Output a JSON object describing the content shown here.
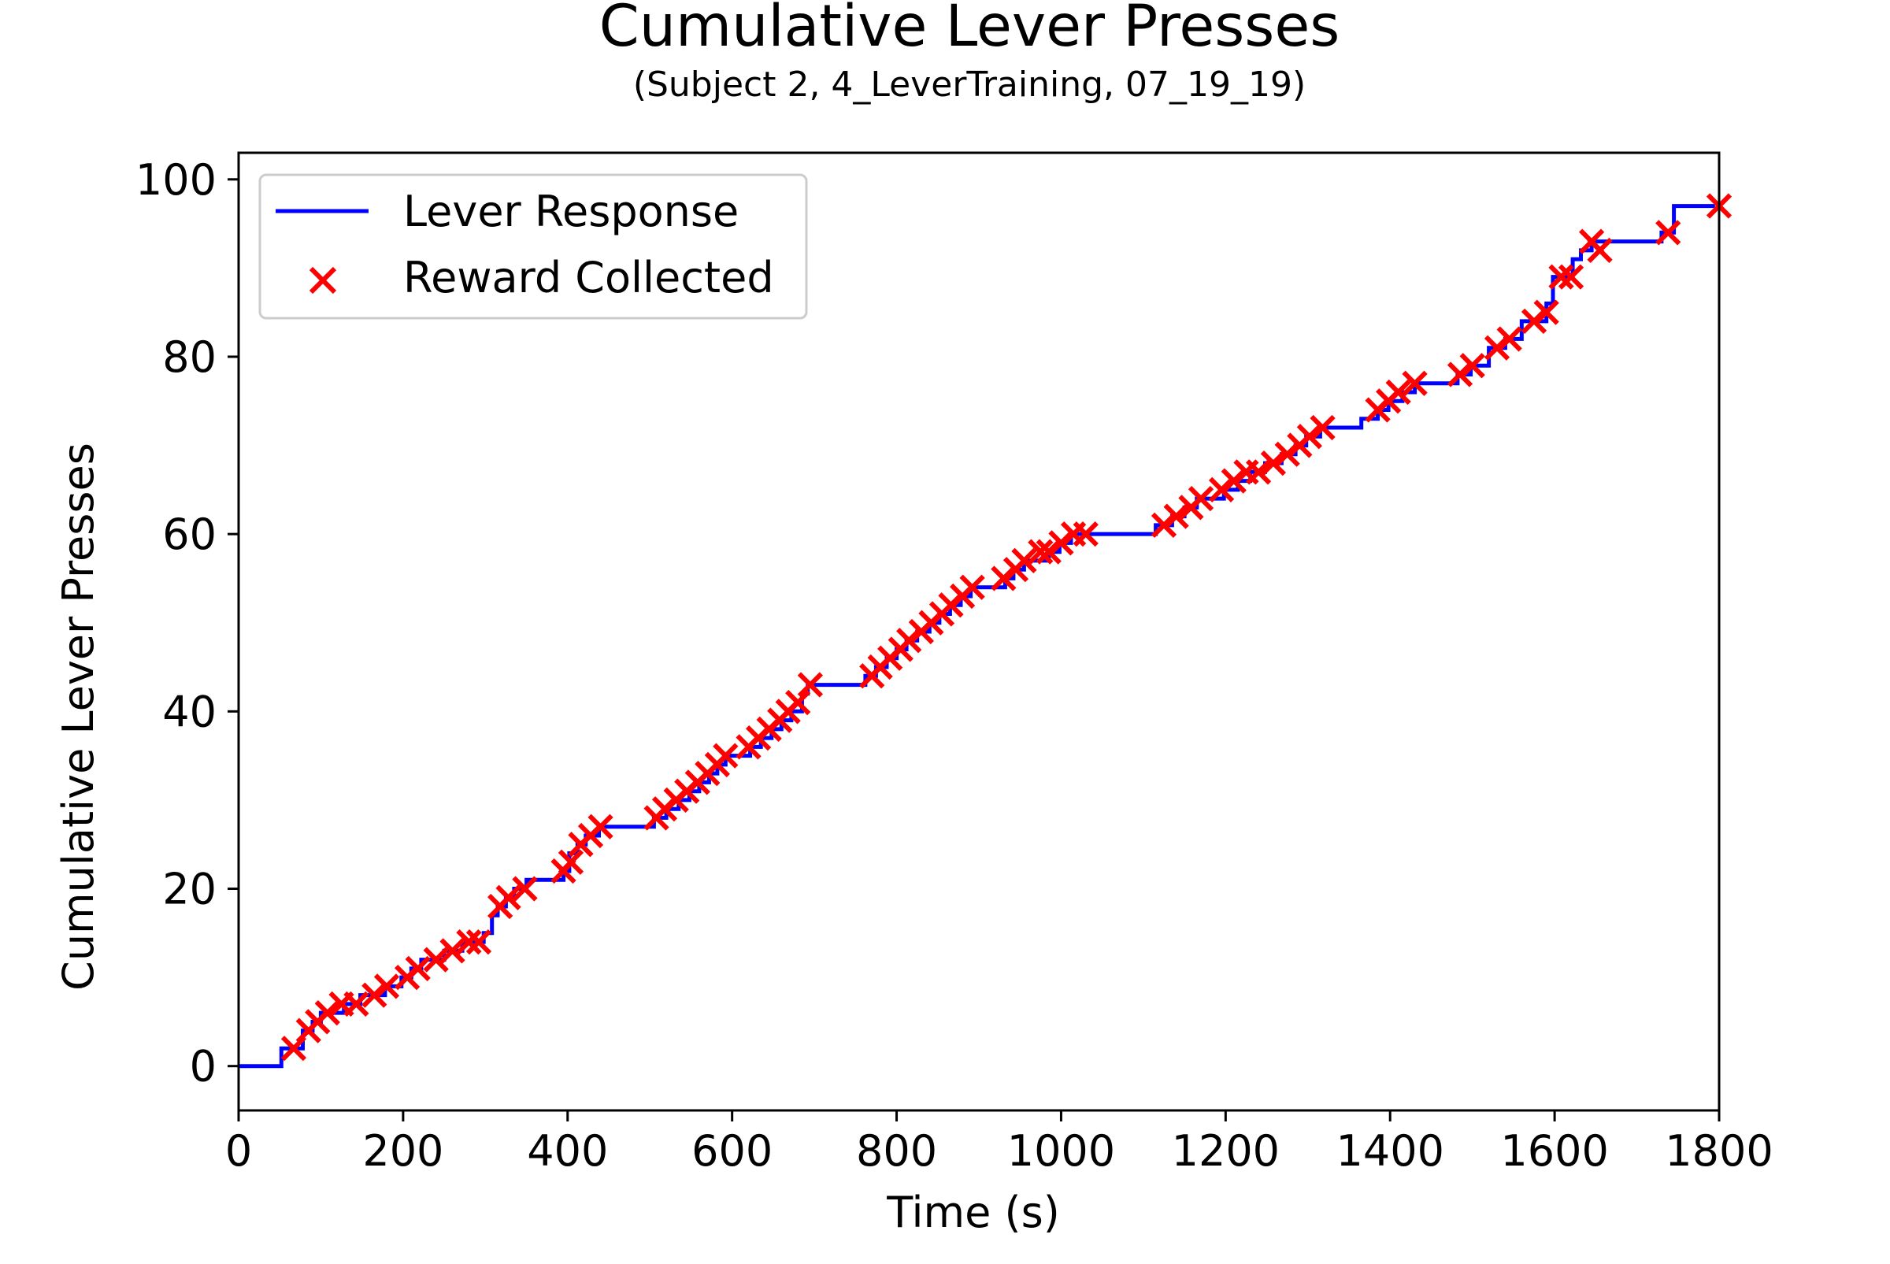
{
  "chart_data": {
    "type": "line",
    "title": "Cumulative Lever Presses",
    "subtitle": "(Subject 2, 4_LeverTraining, 07_19_19)",
    "xlabel": "Time (s)",
    "ylabel": "Cumulative Lever Presses",
    "xlim": [
      0,
      1800
    ],
    "ylim": [
      -5,
      103
    ],
    "xticks": [
      0,
      200,
      400,
      600,
      800,
      1000,
      1200,
      1400,
      1600,
      1800
    ],
    "yticks": [
      0,
      20,
      40,
      60,
      80,
      100
    ],
    "grid": false,
    "legend_position": "top-left",
    "series": [
      {
        "name": "Lever Response",
        "style": "step",
        "color": "#0000ff",
        "points": [
          [
            0,
            0
          ],
          [
            52,
            0
          ],
          [
            52,
            2
          ],
          [
            78,
            2
          ],
          [
            78,
            4
          ],
          [
            90,
            4
          ],
          [
            90,
            5
          ],
          [
            100,
            5
          ],
          [
            100,
            6
          ],
          [
            128,
            6
          ],
          [
            128,
            7
          ],
          [
            148,
            7
          ],
          [
            148,
            8
          ],
          [
            178,
            8
          ],
          [
            178,
            9
          ],
          [
            198,
            9
          ],
          [
            198,
            10
          ],
          [
            210,
            10
          ],
          [
            210,
            11
          ],
          [
            222,
            11
          ],
          [
            222,
            12
          ],
          [
            250,
            12
          ],
          [
            250,
            13
          ],
          [
            272,
            13
          ],
          [
            272,
            14
          ],
          [
            298,
            14
          ],
          [
            298,
            15
          ],
          [
            308,
            15
          ],
          [
            308,
            17
          ],
          [
            315,
            17
          ],
          [
            315,
            18
          ],
          [
            325,
            18
          ],
          [
            325,
            19
          ],
          [
            335,
            19
          ],
          [
            335,
            20
          ],
          [
            350,
            20
          ],
          [
            350,
            21
          ],
          [
            395,
            21
          ],
          [
            395,
            22
          ],
          [
            402,
            22
          ],
          [
            402,
            24
          ],
          [
            412,
            24
          ],
          [
            412,
            25
          ],
          [
            422,
            25
          ],
          [
            422,
            26
          ],
          [
            438,
            26
          ],
          [
            438,
            27
          ],
          [
            505,
            27
          ],
          [
            505,
            28
          ],
          [
            520,
            28
          ],
          [
            520,
            29
          ],
          [
            535,
            29
          ],
          [
            535,
            30
          ],
          [
            548,
            30
          ],
          [
            548,
            31
          ],
          [
            560,
            31
          ],
          [
            560,
            32
          ],
          [
            572,
            32
          ],
          [
            572,
            33
          ],
          [
            582,
            33
          ],
          [
            582,
            34
          ],
          [
            592,
            34
          ],
          [
            592,
            35
          ],
          [
            622,
            35
          ],
          [
            622,
            36
          ],
          [
            635,
            36
          ],
          [
            635,
            37
          ],
          [
            648,
            37
          ],
          [
            648,
            38
          ],
          [
            660,
            38
          ],
          [
            660,
            39
          ],
          [
            672,
            39
          ],
          [
            672,
            40
          ],
          [
            685,
            40
          ],
          [
            685,
            42
          ],
          [
            692,
            42
          ],
          [
            692,
            43
          ],
          [
            762,
            43
          ],
          [
            762,
            44
          ],
          [
            775,
            44
          ],
          [
            775,
            45
          ],
          [
            788,
            45
          ],
          [
            788,
            46
          ],
          [
            800,
            46
          ],
          [
            800,
            47
          ],
          [
            812,
            47
          ],
          [
            812,
            48
          ],
          [
            825,
            48
          ],
          [
            825,
            49
          ],
          [
            840,
            49
          ],
          [
            840,
            50
          ],
          [
            852,
            50
          ],
          [
            852,
            51
          ],
          [
            865,
            51
          ],
          [
            865,
            52
          ],
          [
            878,
            52
          ],
          [
            878,
            53
          ],
          [
            890,
            53
          ],
          [
            890,
            54
          ],
          [
            932,
            54
          ],
          [
            932,
            55
          ],
          [
            942,
            55
          ],
          [
            942,
            56
          ],
          [
            955,
            56
          ],
          [
            955,
            57
          ],
          [
            985,
            57
          ],
          [
            985,
            58
          ],
          [
            998,
            58
          ],
          [
            998,
            59
          ],
          [
            1012,
            59
          ],
          [
            1012,
            60
          ],
          [
            1115,
            60
          ],
          [
            1115,
            61
          ],
          [
            1135,
            61
          ],
          [
            1135,
            62
          ],
          [
            1150,
            62
          ],
          [
            1150,
            63
          ],
          [
            1165,
            63
          ],
          [
            1165,
            64
          ],
          [
            1198,
            64
          ],
          [
            1198,
            65
          ],
          [
            1215,
            65
          ],
          [
            1215,
            66
          ],
          [
            1230,
            66
          ],
          [
            1230,
            67
          ],
          [
            1248,
            67
          ],
          [
            1248,
            68
          ],
          [
            1268,
            68
          ],
          [
            1268,
            69
          ],
          [
            1285,
            69
          ],
          [
            1285,
            70
          ],
          [
            1298,
            70
          ],
          [
            1298,
            71
          ],
          [
            1315,
            71
          ],
          [
            1315,
            72
          ],
          [
            1365,
            72
          ],
          [
            1365,
            73
          ],
          [
            1385,
            73
          ],
          [
            1385,
            74
          ],
          [
            1398,
            74
          ],
          [
            1398,
            75
          ],
          [
            1415,
            75
          ],
          [
            1415,
            76
          ],
          [
            1430,
            76
          ],
          [
            1430,
            77
          ],
          [
            1482,
            77
          ],
          [
            1482,
            78
          ],
          [
            1498,
            78
          ],
          [
            1498,
            79
          ],
          [
            1520,
            79
          ],
          [
            1520,
            81
          ],
          [
            1540,
            81
          ],
          [
            1540,
            82
          ],
          [
            1560,
            82
          ],
          [
            1560,
            84
          ],
          [
            1590,
            84
          ],
          [
            1590,
            86
          ],
          [
            1598,
            86
          ],
          [
            1598,
            89
          ],
          [
            1622,
            89
          ],
          [
            1622,
            91
          ],
          [
            1632,
            91
          ],
          [
            1632,
            92
          ],
          [
            1645,
            92
          ],
          [
            1645,
            93
          ],
          [
            1730,
            93
          ],
          [
            1730,
            94
          ],
          [
            1745,
            94
          ],
          [
            1745,
            97
          ],
          [
            1795,
            97
          ]
        ]
      },
      {
        "name": "Reward Collected",
        "style": "markers",
        "marker": "x",
        "color": "#ff0000",
        "points": [
          [
            67,
            2
          ],
          [
            85,
            4
          ],
          [
            96,
            5
          ],
          [
            108,
            6
          ],
          [
            125,
            7
          ],
          [
            143,
            7
          ],
          [
            165,
            8
          ],
          [
            180,
            9
          ],
          [
            205,
            10
          ],
          [
            218,
            11
          ],
          [
            240,
            12
          ],
          [
            260,
            13
          ],
          [
            280,
            14
          ],
          [
            292,
            14
          ],
          [
            318,
            18
          ],
          [
            328,
            19
          ],
          [
            348,
            20
          ],
          [
            395,
            22
          ],
          [
            404,
            23
          ],
          [
            416,
            25
          ],
          [
            428,
            26
          ],
          [
            440,
            27
          ],
          [
            508,
            28
          ],
          [
            518,
            29
          ],
          [
            532,
            30
          ],
          [
            545,
            31
          ],
          [
            558,
            32
          ],
          [
            570,
            33
          ],
          [
            582,
            34
          ],
          [
            592,
            35
          ],
          [
            620,
            36
          ],
          [
            632,
            37
          ],
          [
            645,
            38
          ],
          [
            658,
            39
          ],
          [
            668,
            40
          ],
          [
            680,
            41
          ],
          [
            695,
            43
          ],
          [
            770,
            44
          ],
          [
            780,
            45
          ],
          [
            792,
            46
          ],
          [
            805,
            47
          ],
          [
            815,
            48
          ],
          [
            830,
            49
          ],
          [
            842,
            50
          ],
          [
            855,
            51
          ],
          [
            866,
            52
          ],
          [
            880,
            53
          ],
          [
            892,
            54
          ],
          [
            930,
            55
          ],
          [
            945,
            56
          ],
          [
            955,
            57
          ],
          [
            975,
            58
          ],
          [
            985,
            58
          ],
          [
            1000,
            59
          ],
          [
            1015,
            60
          ],
          [
            1030,
            60
          ],
          [
            1125,
            61
          ],
          [
            1140,
            62
          ],
          [
            1158,
            63
          ],
          [
            1170,
            64
          ],
          [
            1195,
            65
          ],
          [
            1210,
            66
          ],
          [
            1225,
            67
          ],
          [
            1240,
            67
          ],
          [
            1258,
            68
          ],
          [
            1275,
            69
          ],
          [
            1290,
            70
          ],
          [
            1302,
            71
          ],
          [
            1318,
            72
          ],
          [
            1385,
            74
          ],
          [
            1398,
            75
          ],
          [
            1410,
            76
          ],
          [
            1430,
            77
          ],
          [
            1485,
            78
          ],
          [
            1500,
            79
          ],
          [
            1530,
            81
          ],
          [
            1545,
            82
          ],
          [
            1575,
            84
          ],
          [
            1590,
            85
          ],
          [
            1608,
            89
          ],
          [
            1620,
            89
          ],
          [
            1645,
            93
          ],
          [
            1655,
            92
          ],
          [
            1738,
            94
          ],
          [
            1800,
            97
          ]
        ]
      }
    ]
  }
}
